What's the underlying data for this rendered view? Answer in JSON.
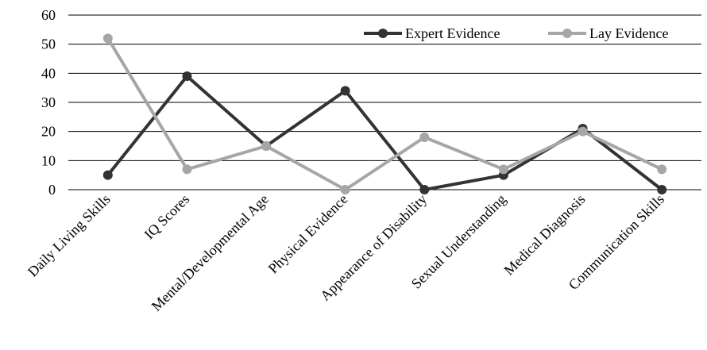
{
  "chart_data": {
    "type": "line",
    "categories": [
      "Daily Living Skills",
      "IQ Scores",
      "Mental/Developmental Age",
      "Physical Evidence",
      "Appearance of Disability",
      "Sexual Understanding",
      "Medical Diagnosis",
      "Communication Skills"
    ],
    "series": [
      {
        "name": "Expert Evidence",
        "values": [
          5,
          39,
          15,
          34,
          0,
          5,
          21,
          0
        ],
        "color": "#333333"
      },
      {
        "name": "Lay Evidence",
        "values": [
          52,
          7,
          15,
          0,
          18,
          7,
          20,
          7
        ],
        "color": "#a6a6a6"
      }
    ],
    "title": "",
    "xlabel": "",
    "ylabel": "",
    "ylim": [
      0,
      60
    ],
    "yticks": [
      "0",
      "10",
      "20",
      "30",
      "40",
      "50",
      "60"
    ],
    "grid": true,
    "legend_position": "top-right"
  }
}
